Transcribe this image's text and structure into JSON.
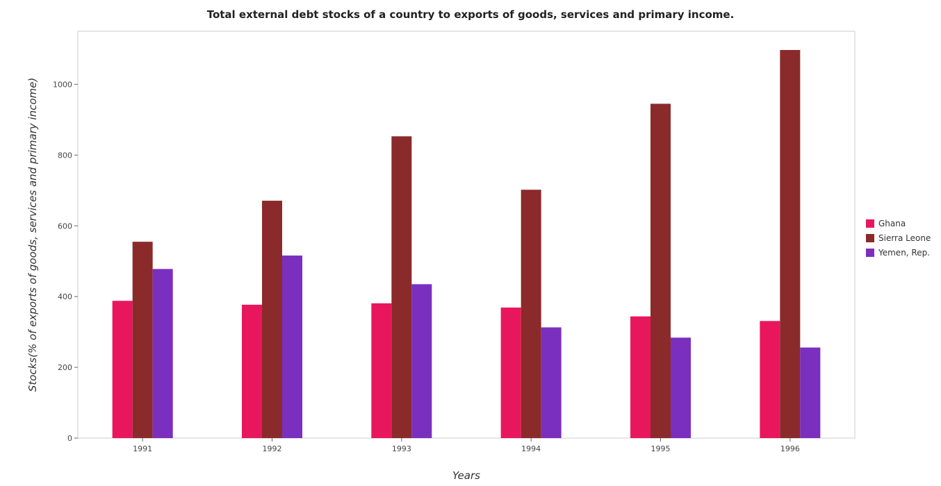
{
  "chart_data": {
    "type": "bar",
    "title": "Total external debt stocks of a country to exports of goods, services and primary income.",
    "xlabel": "Years",
    "ylabel": "Stocks(% of exports of goods, services and primary income)",
    "categories": [
      "1991",
      "1992",
      "1993",
      "1994",
      "1995",
      "1996"
    ],
    "series": [
      {
        "name": "Ghana",
        "color": "#e8175d",
        "values": [
          388,
          377,
          381,
          369,
          344,
          331
        ]
      },
      {
        "name": "Sierra Leone",
        "color": "#8b2a2a",
        "values": [
          555,
          671,
          853,
          702,
          945,
          1097
        ]
      },
      {
        "name": "Yemen, Rep.",
        "color": "#7b2fbf",
        "values": [
          478,
          516,
          435,
          313,
          284,
          256
        ]
      }
    ],
    "ylim": [
      0,
      1150
    ],
    "yticks": [
      0,
      200,
      400,
      600,
      800,
      1000
    ],
    "grid": false,
    "legend": "right"
  }
}
